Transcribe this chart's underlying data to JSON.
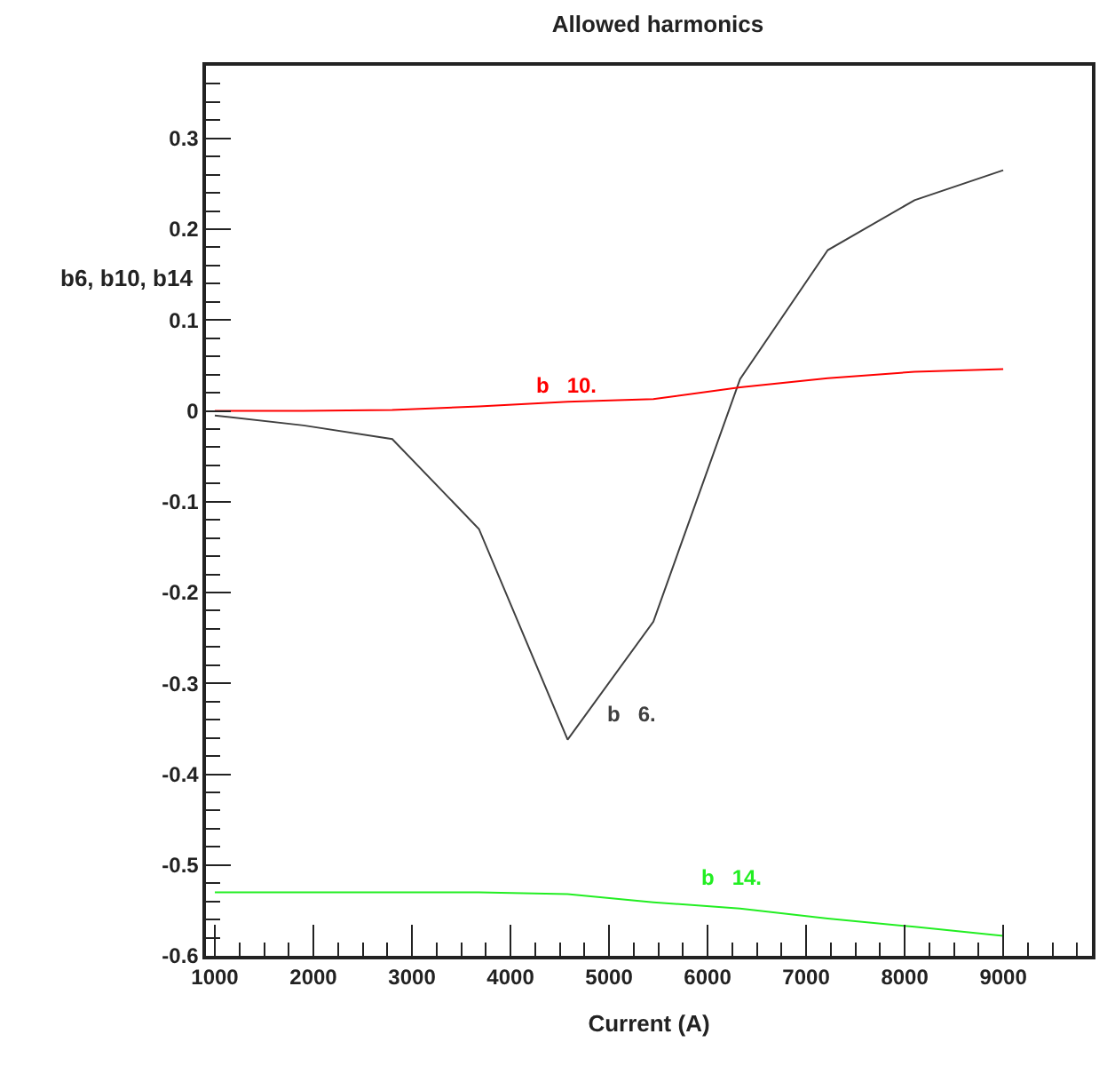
{
  "chart_data": {
    "type": "line",
    "title": "Allowed harmonics",
    "xlabel": "Current (A)",
    "ylabel": "b6, b10, b14",
    "series": [
      {
        "name": "b   6.",
        "color": "#404040",
        "x": [
          1000,
          1900,
          2800,
          3680,
          4580,
          5450,
          6330,
          7220,
          8100,
          9000
        ],
        "values": [
          -0.005,
          -0.016,
          -0.031,
          -0.13,
          -0.362,
          -0.232,
          0.035,
          0.177,
          0.232,
          0.265
        ]
      },
      {
        "name": "b   10.",
        "color": "#ff0000",
        "x": [
          1000,
          1900,
          2800,
          3680,
          4580,
          5450,
          6330,
          7220,
          8100,
          9000
        ],
        "values": [
          0.0,
          0.0,
          0.001,
          0.005,
          0.01,
          0.013,
          0.026,
          0.036,
          0.043,
          0.046
        ]
      },
      {
        "name": "b   14.",
        "color": "#22ee22",
        "x": [
          1000,
          1900,
          2800,
          3680,
          4580,
          5450,
          6330,
          7220,
          8100,
          9000
        ],
        "values": [
          -0.53,
          -0.53,
          -0.53,
          -0.53,
          -0.532,
          -0.541,
          -0.548,
          -0.559,
          -0.568,
          -0.578
        ]
      }
    ],
    "xlim": [
      910,
      9900
    ],
    "xticks": [
      1000,
      2000,
      3000,
      4000,
      5000,
      6000,
      7000,
      8000,
      9000
    ],
    "ylim": [
      -0.6,
      0.38
    ],
    "yticks": [
      0.3,
      0.2,
      0.1,
      0,
      -0.1,
      -0.2,
      -0.3,
      -0.4,
      -0.5,
      -0.6
    ],
    "legend": false,
    "marker": "none",
    "line_style": "solid"
  }
}
